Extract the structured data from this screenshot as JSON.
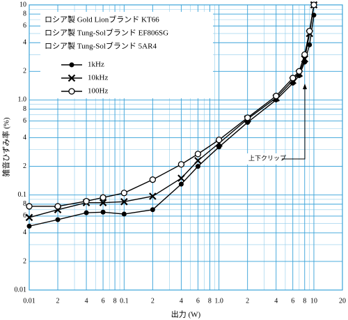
{
  "chart_data": {
    "type": "line",
    "x_label": "出力 (W)",
    "y_label": "雑音ひずみ率 (%)",
    "notes": [
      "ロシア製 Gold Lionブランド KT66",
      "ロシア製 Tung-Solブランド EF806SG",
      "ロシア製 Tung-Solブランド 5AR4"
    ],
    "annotation": "上下クリップ",
    "log_x": true,
    "log_y": true,
    "grid": true,
    "legend": "upper left",
    "xlim": [
      0.01,
      20
    ],
    "ylim": [
      0.01,
      10
    ],
    "xticks": [
      0.01,
      {
        "value": 0.02,
        "label": "2"
      },
      {
        "value": 0.04,
        "label": "4"
      },
      {
        "value": 0.06,
        "label": "6"
      },
      {
        "value": 0.08,
        "label": "8"
      },
      0.1,
      {
        "value": 0.2,
        "label": "2"
      },
      {
        "value": 0.4,
        "label": "4"
      },
      {
        "value": 0.6,
        "label": "6"
      },
      {
        "value": 0.8,
        "label": "8"
      },
      {
        "value": 1,
        "label": "1.0"
      },
      2,
      4,
      6,
      8,
      10,
      20
    ],
    "yticks": [
      0.01,
      {
        "value": 0.02,
        "label": "2"
      },
      {
        "value": 0.04,
        "label": "4"
      },
      {
        "value": 0.06,
        "label": "6"
      },
      {
        "value": 0.08,
        "label": "8"
      },
      0.1,
      {
        "value": 0.2,
        "label": "2"
      },
      {
        "value": 0.4,
        "label": "4"
      },
      {
        "value": 0.6,
        "label": "6"
      },
      {
        "value": 0.8,
        "label": "8"
      },
      {
        "value": 1,
        "label": "1.0"
      },
      2,
      4,
      6,
      8,
      10
    ],
    "x": [
      0.01,
      0.02,
      0.04,
      0.06,
      0.1,
      0.2,
      0.4,
      0.6,
      1,
      2,
      4,
      6,
      7,
      8,
      9,
      10
    ],
    "series": [
      {
        "name": "1kHz",
        "color": "#000000",
        "marker": "filled",
        "values": [
          0.047,
          0.055,
          0.065,
          0.066,
          0.063,
          0.07,
          0.13,
          0.2,
          0.32,
          0.58,
          1.0,
          1.5,
          1.8,
          2.5,
          3.8,
          7.8
        ]
      },
      {
        "name": "10kHz",
        "color": "#000000",
        "marker": "x",
        "values": [
          0.058,
          0.07,
          0.083,
          0.083,
          0.085,
          0.097,
          0.15,
          0.23,
          0.35,
          0.63,
          1.05,
          1.6,
          1.9,
          2.7,
          5,
          10
        ]
      },
      {
        "name": "100Hz",
        "color": "#000000",
        "marker": "open",
        "values": [
          0.076,
          0.076,
          0.086,
          0.094,
          0.105,
          0.145,
          0.21,
          0.27,
          0.38,
          0.65,
          1.1,
          1.7,
          2.0,
          3.0,
          5.3,
          10
        ]
      }
    ]
  }
}
